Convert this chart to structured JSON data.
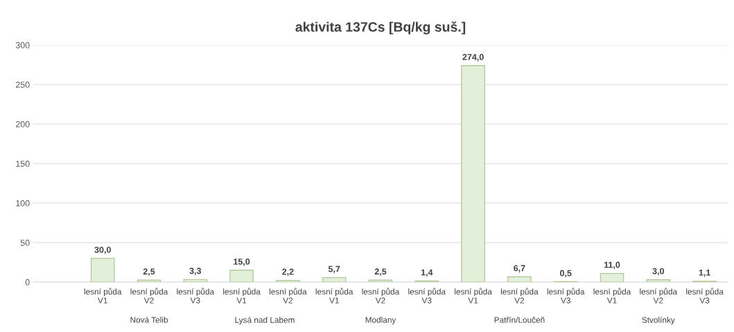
{
  "chart_data": {
    "type": "bar",
    "title": "aktivita 137Cs [Bq/kg suš.]",
    "categories": [
      null,
      "lesní půda\nV1",
      "lesní půda\nV2",
      "lesní půda\nV3",
      "lesní půda\nV1",
      "lesní půda\nV2",
      "lesní půda\nV1",
      "lesní půda\nV2",
      "lesní půda\nV3",
      "lesní půda\nV1",
      "lesní půda\nV2",
      "lesní půda\nV3",
      "lesní půda\nV1",
      "lesní půda\nV2",
      "lesní půda\nV3"
    ],
    "values": [
      null,
      30.0,
      2.5,
      3.3,
      15.0,
      2.2,
      5.7,
      2.5,
      1.4,
      274.0,
      6.7,
      0.5,
      11.0,
      3.0,
      1.1
    ],
    "value_labels": [
      null,
      "30,0",
      "2,5",
      "3,3",
      "15,0",
      "2,2",
      "5,7",
      "2,5",
      "1,4",
      "274,0",
      "6,7",
      "0,5",
      "11,0",
      "3,0",
      "1,1"
    ],
    "color": "#e2efd9",
    "annotations": [
      "Nová Telib",
      "Lysá nad Labem",
      "Modlany",
      "Patřín/Loučeň",
      "Stvolínky"
    ],
    "ylim": [
      0,
      300
    ],
    "yticks": [
      0,
      50,
      100,
      150,
      200,
      250,
      300
    ],
    "grid": "y",
    "legend": false
  }
}
